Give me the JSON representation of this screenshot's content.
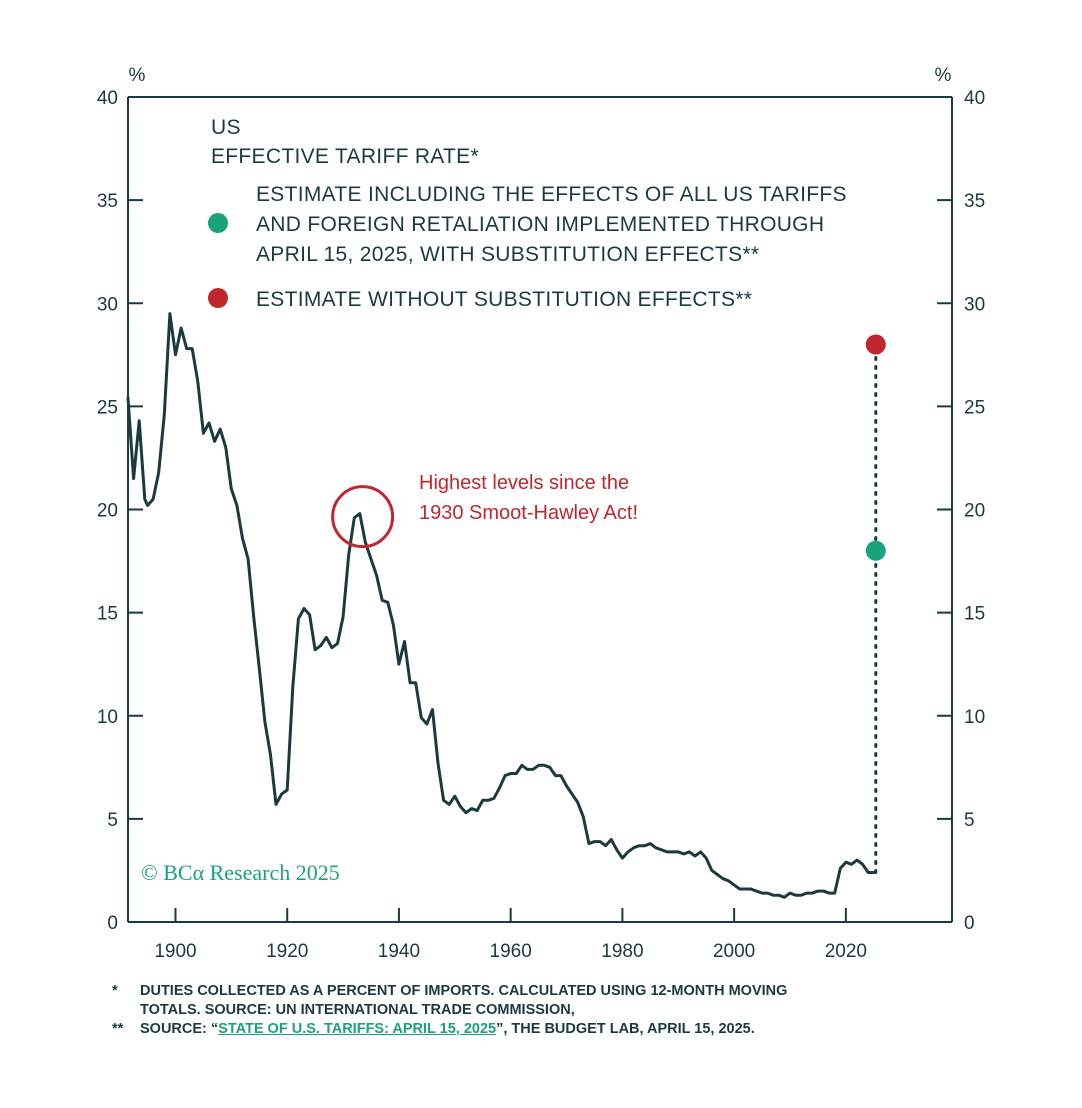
{
  "chart_data": {
    "type": "line",
    "title": "US EFFECTIVE TARIFF RATE*",
    "title_line1": "US",
    "title_line2": "EFFECTIVE TARIFF RATE*",
    "y_unit_left": "%",
    "y_unit_right": "%",
    "ylim": [
      0,
      40
    ],
    "xlim": [
      1891.5,
      2039
    ],
    "y_ticks": [
      0,
      5,
      10,
      15,
      20,
      25,
      30,
      35,
      40
    ],
    "x_ticks": [
      1900,
      1920,
      1940,
      1960,
      1980,
      2000,
      2020
    ],
    "series": [
      {
        "name": "US effective tariff rate",
        "color": "#1b3a40",
        "x": [
          1891.5,
          1892.5,
          1893.5,
          1894.5,
          1895,
          1896,
          1897,
          1898,
          1899,
          1900,
          1901,
          1902,
          1903,
          1904,
          1905,
          1906,
          1907,
          1908,
          1909,
          1910,
          1911,
          1912,
          1913,
          1914,
          1915,
          1916,
          1917,
          1918,
          1919,
          1920,
          1921,
          1922,
          1923,
          1924,
          1925,
          1926,
          1927,
          1928,
          1929,
          1930,
          1931,
          1932,
          1933,
          1934,
          1935,
          1936,
          1937,
          1938,
          1939,
          1940,
          1941,
          1942,
          1943,
          1944,
          1945,
          1946,
          1947,
          1948,
          1949,
          1950,
          1951,
          1952,
          1953,
          1954,
          1955,
          1956,
          1957,
          1958,
          1959,
          1960,
          1961,
          1962,
          1963,
          1964,
          1965,
          1966,
          1967,
          1968,
          1969,
          1970,
          1971,
          1972,
          1973,
          1974,
          1975,
          1976,
          1977,
          1978,
          1979,
          1980,
          1981,
          1982,
          1983,
          1984,
          1985,
          1986,
          1987,
          1988,
          1989,
          1990,
          1991,
          1992,
          1993,
          1994,
          1995,
          1996,
          1997,
          1998,
          1999,
          2000,
          2001,
          2002,
          2003,
          2004,
          2005,
          2006,
          2007,
          2008,
          2009,
          2010,
          2011,
          2012,
          2013,
          2014,
          2015,
          2016,
          2017,
          2018,
          2019,
          2020,
          2021,
          2022,
          2023,
          2024,
          2025
        ],
        "values": [
          25.4,
          21.5,
          24.3,
          20.5,
          20.2,
          20.5,
          21.8,
          24.6,
          29.5,
          27.5,
          28.8,
          27.8,
          27.8,
          26.2,
          23.7,
          24.2,
          23.3,
          23.9,
          23.0,
          21.0,
          20.2,
          18.6,
          17.6,
          14.8,
          12.3,
          9.7,
          8.1,
          5.7,
          6.2,
          6.4,
          11.4,
          14.7,
          15.2,
          14.9,
          13.2,
          13.4,
          13.8,
          13.3,
          13.5,
          14.8,
          17.8,
          19.6,
          19.8,
          18.4,
          17.6,
          16.8,
          15.6,
          15.5,
          14.4,
          12.5,
          13.6,
          11.6,
          11.6,
          9.9,
          9.6,
          10.3,
          7.7,
          5.9,
          5.7,
          6.1,
          5.6,
          5.3,
          5.5,
          5.4,
          5.9,
          5.9,
          6.0,
          6.5,
          7.1,
          7.2,
          7.2,
          7.6,
          7.4,
          7.4,
          7.6,
          7.6,
          7.5,
          7.1,
          7.1,
          6.6,
          6.2,
          5.8,
          5.1,
          3.8,
          3.9,
          3.9,
          3.7,
          4.0,
          3.5,
          3.1,
          3.4,
          3.6,
          3.7,
          3.7,
          3.8,
          3.6,
          3.5,
          3.4,
          3.4,
          3.4,
          3.3,
          3.4,
          3.2,
          3.4,
          3.1,
          2.5,
          2.3,
          2.1,
          2.0,
          1.8,
          1.6,
          1.6,
          1.6,
          1.5,
          1.4,
          1.4,
          1.3,
          1.3,
          1.2,
          1.4,
          1.3,
          1.3,
          1.4,
          1.4,
          1.5,
          1.5,
          1.4,
          1.4,
          2.6,
          2.9,
          2.8,
          3.0,
          2.8,
          2.4,
          2.4
        ]
      }
    ],
    "estimates": [
      {
        "name": "ESTIMATE INCLUDING THE EFFECTS OF ALL US TARIFFS AND FOREIGN RETALIATION IMPLEMENTED THROUGH APRIL 15, 2025, WITH SUBSTITUTION EFFECTS**",
        "x": 2025,
        "value": 18.0,
        "color": "#1aa37a"
      },
      {
        "name": "ESTIMATE WITHOUT SUBSTITUTION EFFECTS**",
        "x": 2025,
        "value": 28.0,
        "color": "#c0272d"
      }
    ],
    "legend": [
      {
        "marker_color": "#1aa37a",
        "lines": [
          "ESTIMATE INCLUDING THE EFFECTS OF ALL US TARIFFS",
          "AND FOREIGN RETALIATION IMPLEMENTED THROUGH",
          "APRIL 15, 2025, WITH SUBSTITUTION EFFECTS**"
        ]
      },
      {
        "marker_color": "#c0272d",
        "lines": [
          "ESTIMATE WITHOUT SUBSTITUTION EFFECTS**"
        ]
      }
    ],
    "annotation": {
      "lines": [
        "Highest levels since the",
        "1930 Smoot-Hawley Act!"
      ],
      "circle_at": {
        "x": 1933.5,
        "y": 19.8
      },
      "color": "#c0272d"
    },
    "copyright": "© BCα Research 2025"
  },
  "footnotes": {
    "note1_marker": "*",
    "note1_line1": "DUTIES COLLECTED AS A PERCENT OF IMPORTS. CALCULATED USING 12-MONTH MOVING",
    "note1_line2": "TOTALS. SOURCE: UN INTERNATIONAL TRADE COMMISSION,",
    "note2_marker": "**",
    "note2_prefix": "SOURCE: “",
    "note2_link": "STATE OF U.S. TARIFFS: APRIL 15, 2025",
    "note2_suffix": "”, THE BUDGET LAB, APRIL 15, 2025."
  },
  "colors": {
    "line": "#1b3a40",
    "axis": "#1b3a40",
    "accent_green": "#1aa37a",
    "accent_red": "#c0272d"
  }
}
